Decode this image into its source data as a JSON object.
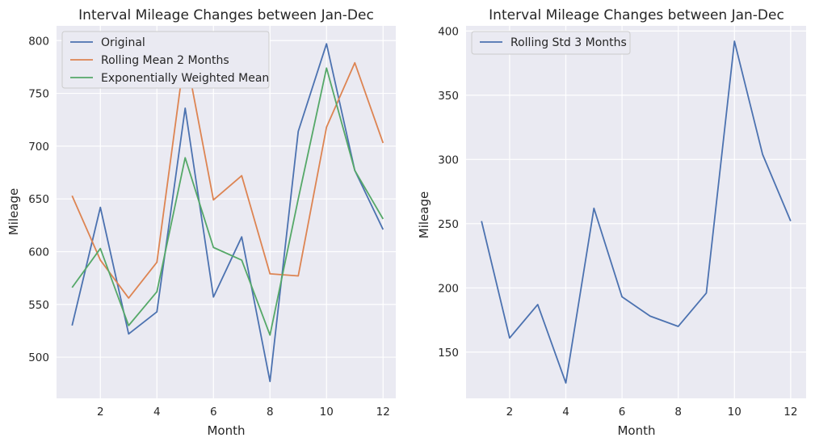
{
  "chart_data": [
    {
      "type": "line",
      "title": "Interval Mileage Changes between Jan-Dec",
      "xlabel": "Month",
      "ylabel": "Mileage",
      "x": [
        1,
        2,
        3,
        4,
        5,
        6,
        7,
        8,
        9,
        10,
        11,
        12
      ],
      "xlim": [
        0.45,
        12.45
      ],
      "ylim": [
        461,
        814
      ],
      "xticks": [
        2,
        4,
        6,
        8,
        10,
        12
      ],
      "yticks": [
        500,
        550,
        600,
        650,
        700,
        750,
        800
      ],
      "grid": true,
      "legend_position": "top-left",
      "series": [
        {
          "name": "Original",
          "color": "#4c72b0",
          "values": [
            530,
            642,
            522,
            543,
            736,
            557,
            614,
            477,
            714,
            797,
            677,
            621
          ]
        },
        {
          "name": "Rolling Mean 2 Months",
          "color": "#dd8452",
          "values": [
            653,
            592,
            556,
            590,
            790,
            649,
            672,
            579,
            577,
            718,
            779,
            703
          ]
        },
        {
          "name": "Exponentially Weighted Mean",
          "color": "#55a868",
          "values": [
            566,
            603,
            530,
            562,
            689,
            604,
            592,
            521,
            650,
            774,
            677,
            631
          ]
        }
      ]
    },
    {
      "type": "line",
      "title": "Interval Mileage Changes between Jan-Dec",
      "xlabel": "Month",
      "ylabel": "Mileage",
      "x": [
        1,
        2,
        3,
        4,
        5,
        6,
        7,
        8,
        9,
        10,
        11,
        12
      ],
      "xlim": [
        0.45,
        12.55
      ],
      "ylim": [
        114,
        404
      ],
      "xticks": [
        2,
        4,
        6,
        8,
        10,
        12
      ],
      "yticks": [
        150,
        200,
        250,
        300,
        350,
        400
      ],
      "grid": true,
      "legend_position": "top-left",
      "series": [
        {
          "name": "Rolling Std 3 Months",
          "color": "#4c72b0",
          "values": [
            252,
            161,
            187,
            126,
            262,
            193,
            178,
            170,
            196,
            392,
            304,
            252
          ]
        }
      ]
    }
  ]
}
